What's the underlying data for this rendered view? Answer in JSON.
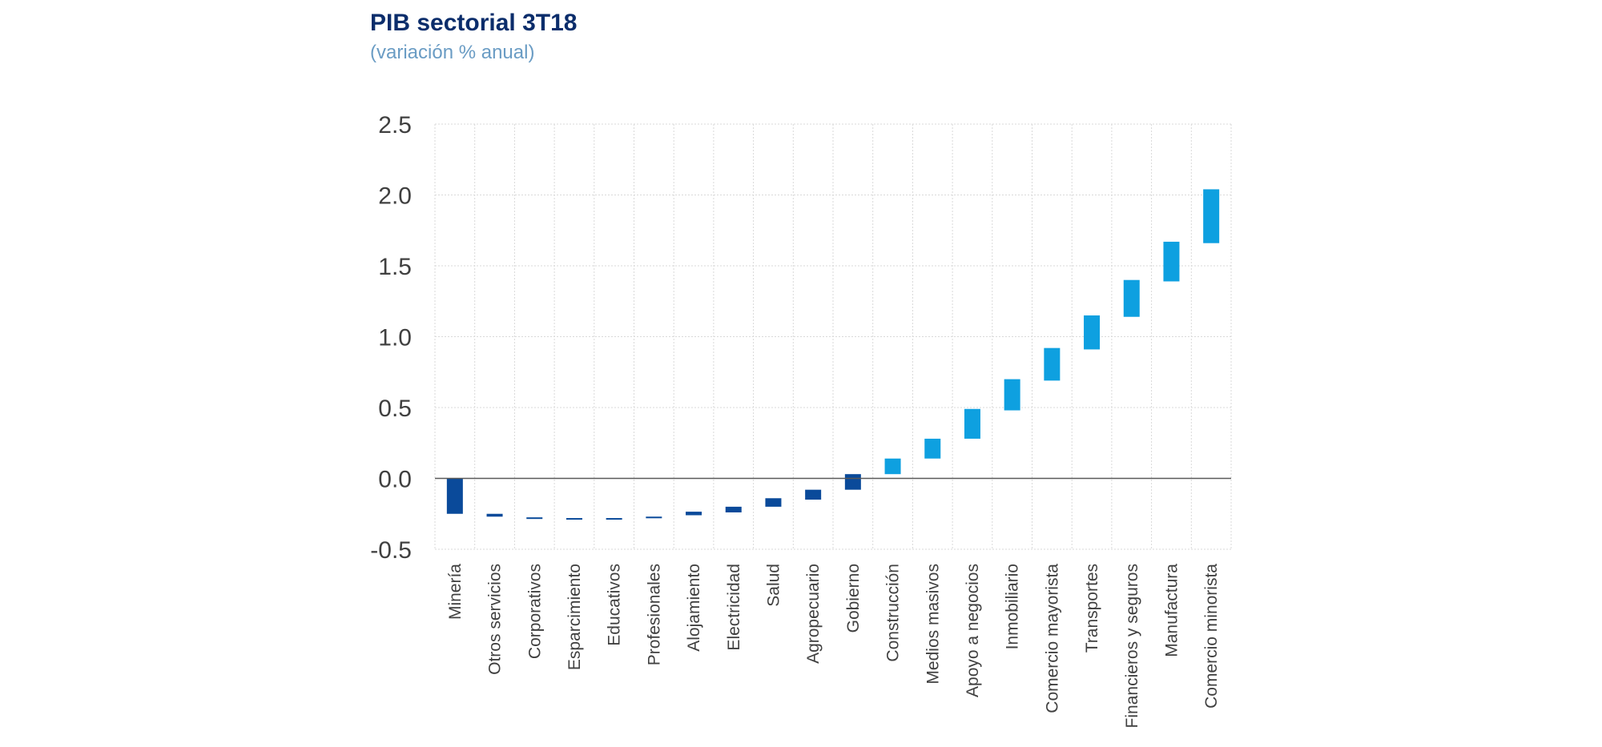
{
  "header": {
    "title": "PIB sectorial 3T18",
    "subtitle": "(variación % anual)"
  },
  "chart_data": {
    "type": "waterfall",
    "title": "PIB sectorial 3T18",
    "subtitle": "(variación % anual)",
    "xlabel": "",
    "ylabel": "",
    "ylim": [
      -0.5,
      2.5
    ],
    "yticks": [
      "2.5",
      "2.0",
      "1.5",
      "1.0",
      "0.5",
      "0.0",
      "-0.5"
    ],
    "ytick_values": [
      2.5,
      2.0,
      1.5,
      1.0,
      0.5,
      0.0,
      -0.5
    ],
    "grid": true,
    "colors": {
      "negative": "#0a4a9a",
      "positive": "#0ea0e0",
      "grid": "#d9d9d9",
      "zero_line": "#595959"
    },
    "categories": [
      "Minería",
      "Otros servicios",
      "Corporativos",
      "Esparcimiento",
      "Educativos",
      "Profesionales",
      "Alojamiento",
      "Electricidad",
      "Salud",
      "Agropecuario",
      "Gobierno",
      "Construcción",
      "Medios masivos",
      "Apoyo a negocios",
      "Inmobiliario",
      "Comercio mayorista",
      "Transportes",
      "Financieros y seguros",
      "Manufactura",
      "Comercio minorista"
    ],
    "series": [
      {
        "name": "bottom",
        "values": [
          -0.25,
          -0.27,
          -0.285,
          -0.285,
          -0.285,
          -0.28,
          -0.26,
          -0.24,
          -0.2,
          -0.15,
          -0.08,
          0.03,
          0.14,
          0.28,
          0.48,
          0.69,
          0.91,
          1.14,
          1.39,
          1.66
        ]
      },
      {
        "name": "top",
        "values": [
          0.0,
          -0.25,
          -0.275,
          -0.28,
          -0.28,
          -0.27,
          -0.235,
          -0.2,
          -0.14,
          -0.08,
          0.03,
          0.14,
          0.28,
          0.49,
          0.7,
          0.92,
          1.15,
          1.4,
          1.67,
          2.04
        ]
      }
    ]
  }
}
